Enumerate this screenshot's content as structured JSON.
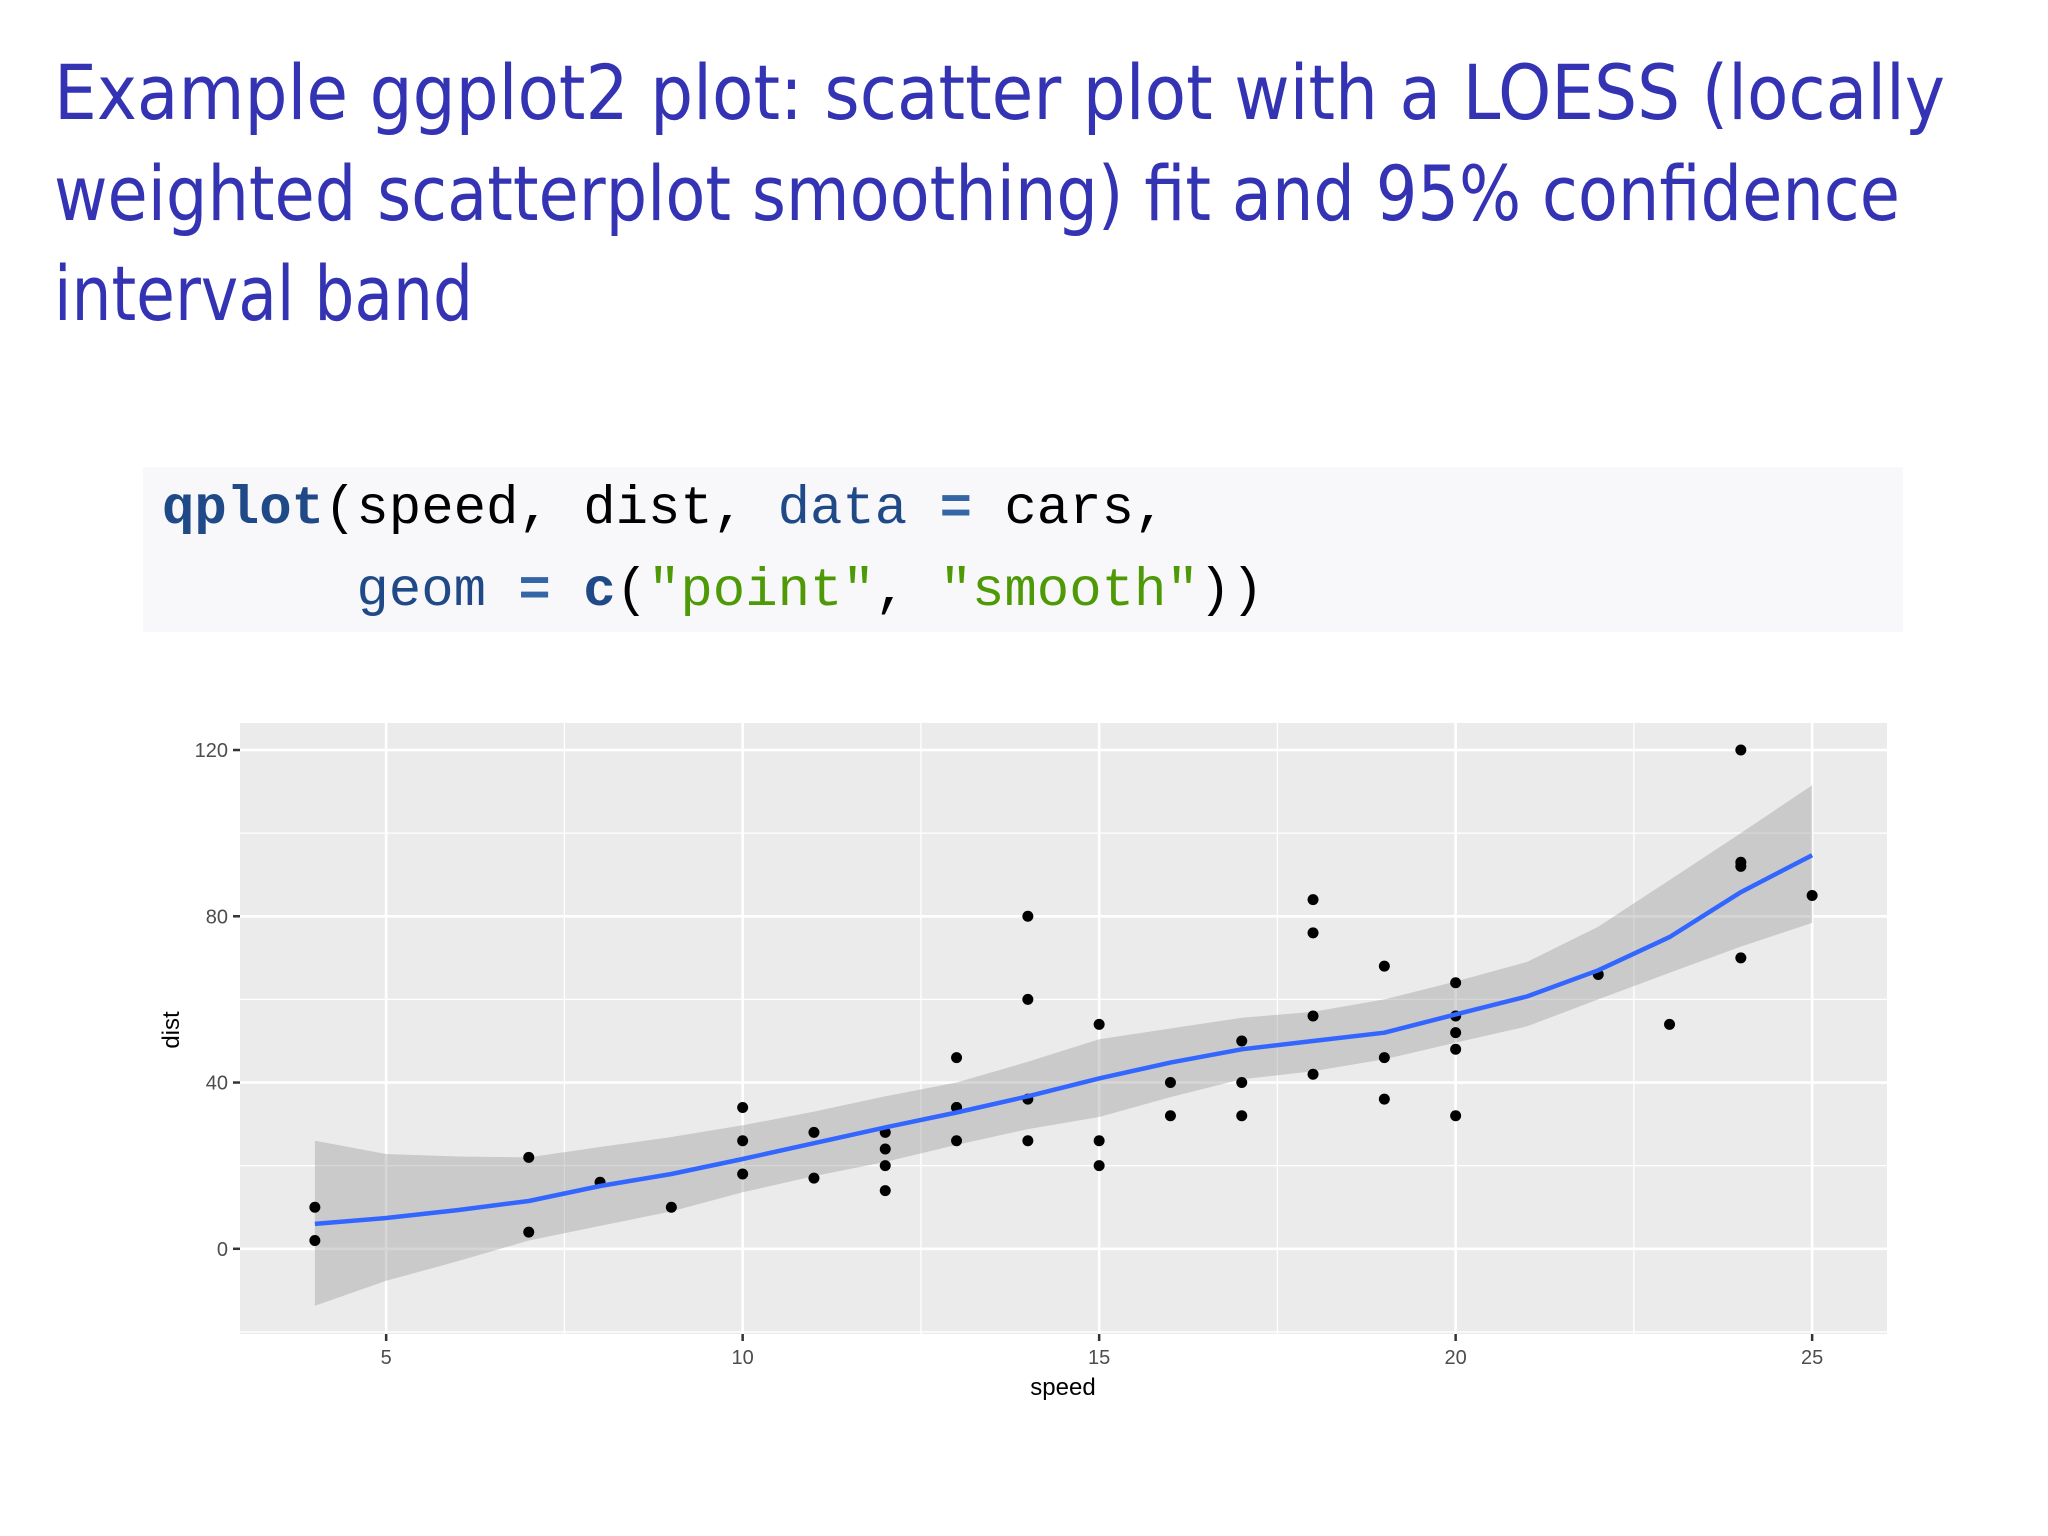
{
  "slide": {
    "title_lines": [
      "Example ggplot2 plot: scatter plot with a LOESS (locally",
      "weighted scatterplot smoothing) fit and 95% confidence",
      "interval band"
    ],
    "title_color": "#3333b3",
    "code": {
      "background": "#f8f7fa",
      "lines": [
        [
          {
            "text": "qplot",
            "type": "fn"
          },
          {
            "text": "(speed, dist, ",
            "type": "plain"
          },
          {
            "text": "data",
            "type": "arg"
          },
          {
            "text": " ",
            "type": "plain"
          },
          {
            "text": "=",
            "type": "op"
          },
          {
            "text": " cars,",
            "type": "plain"
          }
        ],
        [
          {
            "text": "      ",
            "type": "plain"
          },
          {
            "text": "geom",
            "type": "arg"
          },
          {
            "text": " ",
            "type": "plain"
          },
          {
            "text": "=",
            "type": "op"
          },
          {
            "text": " ",
            "type": "plain"
          },
          {
            "text": "c",
            "type": "fn"
          },
          {
            "text": "(",
            "type": "plain"
          },
          {
            "text": "\"point\"",
            "type": "str"
          },
          {
            "text": ", ",
            "type": "plain"
          },
          {
            "text": "\"smooth\"",
            "type": "str"
          },
          {
            "text": "))",
            "type": "plain"
          }
        ]
      ]
    }
  },
  "chart_data": {
    "type": "scatter",
    "title": "",
    "xlabel": "speed",
    "ylabel": "dist",
    "xlim": [
      2.95,
      26.05
    ],
    "ylim": [
      -20.5,
      126.5
    ],
    "x_ticks": [
      5,
      10,
      15,
      20,
      25
    ],
    "y_ticks": [
      0,
      40,
      80,
      120
    ],
    "x_minor": [
      7.5,
      12.5,
      17.5,
      22.5
    ],
    "y_minor": [
      -20,
      20,
      60,
      100
    ],
    "grid": true,
    "legend": null,
    "colors": {
      "panel_bg": "#ebebeb",
      "grid": "#ffffff",
      "points": "#000000",
      "smooth_line": "#3366ff",
      "ribbon": "#999999"
    },
    "points": {
      "x": [
        4,
        4,
        7,
        7,
        8,
        9,
        10,
        10,
        10,
        11,
        11,
        12,
        12,
        12,
        12,
        13,
        13,
        13,
        13,
        14,
        14,
        14,
        14,
        15,
        15,
        15,
        16,
        16,
        17,
        17,
        17,
        18,
        18,
        18,
        18,
        19,
        19,
        19,
        20,
        20,
        20,
        20,
        20,
        22,
        23,
        24,
        24,
        24,
        24,
        25
      ],
      "y": [
        2,
        10,
        4,
        22,
        16,
        10,
        18,
        26,
        34,
        17,
        28,
        14,
        20,
        24,
        28,
        26,
        34,
        34,
        46,
        26,
        36,
        60,
        80,
        20,
        26,
        54,
        32,
        40,
        32,
        40,
        50,
        42,
        56,
        76,
        84,
        36,
        46,
        68,
        32,
        48,
        52,
        56,
        64,
        66,
        54,
        70,
        92,
        93,
        120,
        85
      ]
    },
    "series": [
      {
        "name": "LOESS fit",
        "x": [
          4,
          5,
          6,
          7,
          8,
          9,
          10,
          11,
          12,
          13,
          14,
          15,
          16,
          17,
          18,
          19,
          20,
          21,
          22,
          23,
          24,
          25
        ],
        "values": [
          6.0,
          7.4,
          9.3,
          11.5,
          15.1,
          18.0,
          21.6,
          25.4,
          29.2,
          32.8,
          36.7,
          41.0,
          44.8,
          48.0,
          50.0,
          52.0,
          56.4,
          60.7,
          67.0,
          75.0,
          85.8,
          94.7
        ]
      },
      {
        "name": "95% CI upper",
        "x": [
          4,
          5,
          6,
          7,
          8,
          9,
          10,
          11,
          12,
          13,
          14,
          15,
          16,
          17,
          18,
          19,
          20,
          21,
          22,
          23,
          24,
          25
        ],
        "values": [
          26.0,
          22.8,
          22.2,
          22.0,
          24.5,
          26.9,
          29.7,
          33.0,
          36.7,
          40.0,
          45.0,
          50.4,
          53.0,
          55.6,
          57.0,
          60.0,
          64.3,
          69.0,
          77.5,
          88.7,
          100.0,
          111.5
        ]
      },
      {
        "name": "95% CI lower",
        "x": [
          4,
          5,
          6,
          7,
          8,
          9,
          10,
          11,
          12,
          13,
          14,
          15,
          16,
          17,
          18,
          19,
          20,
          21,
          22,
          23,
          24,
          25
        ],
        "values": [
          -13.7,
          -7.7,
          -3.0,
          2.0,
          5.5,
          9.0,
          13.6,
          17.5,
          20.9,
          25.0,
          28.8,
          31.7,
          36.5,
          40.8,
          42.7,
          45.6,
          49.6,
          53.5,
          60.0,
          66.4,
          72.7,
          78.4
        ]
      }
    ]
  }
}
